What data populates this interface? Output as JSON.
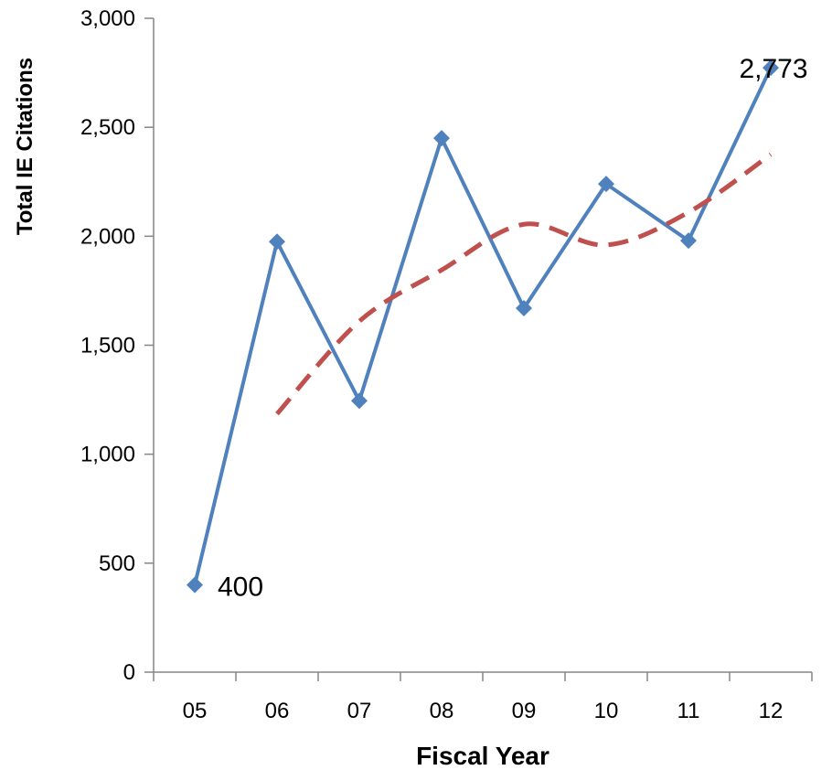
{
  "chart_data": {
    "type": "line",
    "categories": [
      "05",
      "06",
      "07",
      "08",
      "09",
      "10",
      "11",
      "12"
    ],
    "series": [
      {
        "values": [
          400,
          1975,
          1245,
          2450,
          1670,
          2240,
          1980,
          2773
        ],
        "color": "#4F81BD",
        "style": "solid",
        "marker": "diamond"
      },
      {
        "values": [
          null,
          1185,
          1610,
          1845,
          2055,
          1960,
          2110,
          2375
        ],
        "color": "#C0504D",
        "style": "dashed",
        "marker": "none"
      }
    ],
    "data_labels": [
      {
        "index": 0,
        "text": "400"
      },
      {
        "index": 7,
        "text": "2,773"
      }
    ],
    "title": "",
    "xlabel": "Fiscal Year",
    "ylabel": "Total IE Citations",
    "ylim": [
      0,
      3000
    ],
    "yticks": [
      0,
      500,
      1000,
      1500,
      2000,
      2500,
      3000
    ],
    "ytick_labels": [
      "0",
      "500",
      "1,000",
      "1,500",
      "2,000",
      "2,500",
      "3,000"
    ],
    "grid": false,
    "legend": "none"
  }
}
